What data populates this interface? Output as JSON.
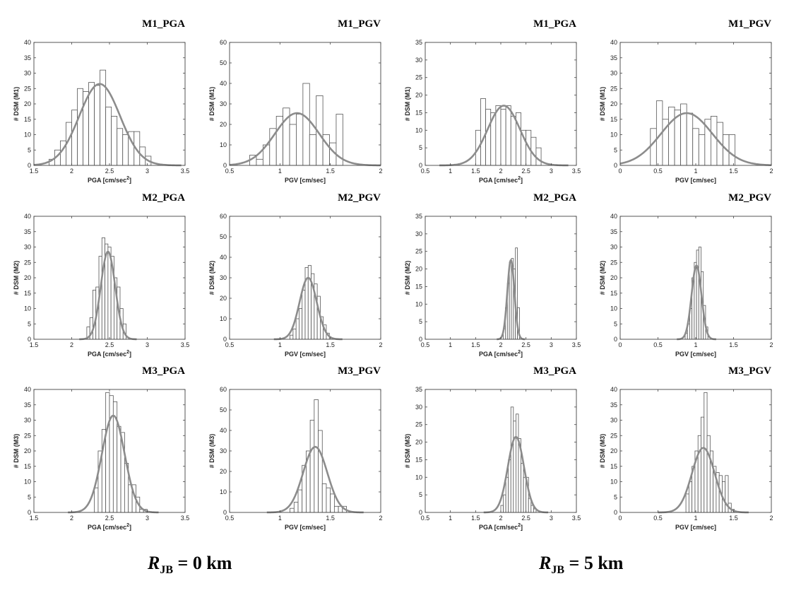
{
  "captions": {
    "left": {
      "symbol": "R",
      "subscript": "JB",
      "rest": " = 0 km"
    },
    "right": {
      "symbol": "R",
      "subscript": "JB",
      "rest": " = 5 km"
    }
  },
  "chart_data": [
    {
      "type": "bar",
      "title": "M1_PGA",
      "xlabel": "PGA [cm/sec2]",
      "ylabel": "# DSM (M1)",
      "xlim": [
        1.5,
        3.5
      ],
      "ylim": [
        0,
        40
      ],
      "xticks": [
        "1.5",
        "2",
        "2.5",
        "3",
        "3.5"
      ],
      "yticks": [
        "0",
        "5",
        "10",
        "15",
        "20",
        "25",
        "30",
        "35",
        "40"
      ],
      "bins": [
        1.7,
        1.775,
        1.85,
        1.925,
        2.0,
        2.075,
        2.15,
        2.225,
        2.3,
        2.375,
        2.45,
        2.525,
        2.6,
        2.675,
        2.75,
        2.825,
        2.9,
        2.975,
        3.05
      ],
      "counts": [
        2,
        5,
        8,
        14,
        18,
        25,
        24,
        27,
        26,
        31,
        19,
        16,
        12,
        10,
        11,
        11,
        6,
        3
      ],
      "fit": {
        "mean": 2.37,
        "sd": 0.27,
        "peak": 26.5
      }
    },
    {
      "type": "bar",
      "title": "M1_PGV",
      "xlabel": "PGV [cm/sec]",
      "ylabel": "# DSM (M1)",
      "xlim": [
        0.5,
        2
      ],
      "ylim": [
        0,
        60
      ],
      "xticks": [
        "0.5",
        "1",
        "1.5",
        "2"
      ],
      "yticks": [
        "0",
        "10",
        "20",
        "30",
        "40",
        "50",
        "60"
      ],
      "bins": [
        0.7,
        0.766,
        0.832,
        0.898,
        0.964,
        1.03,
        1.096,
        1.162,
        1.228,
        1.294,
        1.36,
        1.426,
        1.492,
        1.558,
        1.624
      ],
      "counts": [
        5,
        3,
        10,
        18,
        24,
        28,
        20,
        25,
        40,
        15,
        34,
        15,
        11,
        25,
        16
      ],
      "fit": {
        "mean": 1.17,
        "sd": 0.22,
        "peak": 25.5
      }
    },
    {
      "type": "bar",
      "title": "M1_PGA",
      "xlabel": "PGA [cm/sec2]",
      "ylabel": "# DSM (M1)",
      "xlim": [
        0.5,
        3.5
      ],
      "ylim": [
        0,
        35
      ],
      "xticks": [
        "0.5",
        "1",
        "1.5",
        "2",
        "2.5",
        "3",
        "3.5"
      ],
      "yticks": [
        "0",
        "5",
        "10",
        "15",
        "20",
        "25",
        "30",
        "35"
      ],
      "bins": [
        1.5,
        1.6,
        1.7,
        1.8,
        1.9,
        2.0,
        2.1,
        2.2,
        2.3,
        2.4,
        2.5,
        2.6,
        2.7,
        2.8
      ],
      "counts": [
        10,
        19,
        16,
        15,
        17,
        16,
        17,
        14,
        15,
        10,
        10,
        8,
        5
      ],
      "fit": {
        "mean": 2.06,
        "sd": 0.32,
        "peak": 17
      }
    },
    {
      "type": "bar",
      "title": "M1_PGV",
      "xlabel": "PGV [cm/sec]",
      "ylabel": "# DSM (M1)",
      "xlim": [
        0,
        2
      ],
      "ylim": [
        0,
        40
      ],
      "xticks": [
        "0",
        "0.5",
        "1",
        "1.5",
        "2"
      ],
      "yticks": [
        "0",
        "5",
        "10",
        "15",
        "20",
        "25",
        "30",
        "35",
        "40"
      ],
      "bins": [
        0.4,
        0.48,
        0.56,
        0.64,
        0.72,
        0.8,
        0.88,
        0.96,
        1.04,
        1.12,
        1.2,
        1.28,
        1.36,
        1.44,
        1.52
      ],
      "counts": [
        12,
        21,
        15,
        19,
        18,
        20,
        17,
        12,
        10,
        15,
        16,
        14,
        10,
        10
      ],
      "fit": {
        "mean": 0.88,
        "sd": 0.34,
        "peak": 17
      }
    },
    {
      "type": "bar",
      "title": "M2_PGA",
      "xlabel": "PGA [cm/sec2]",
      "ylabel": "# DSM (M2)",
      "xlim": [
        1.5,
        3.5
      ],
      "ylim": [
        0,
        40
      ],
      "xticks": [
        "1.5",
        "2",
        "2.5",
        "3",
        "3.5"
      ],
      "yticks": [
        "0",
        "5",
        "10",
        "15",
        "20",
        "25",
        "30",
        "35",
        "40"
      ],
      "bins": [
        2.2,
        2.24,
        2.28,
        2.32,
        2.36,
        2.4,
        2.44,
        2.48,
        2.52,
        2.56,
        2.6,
        2.64,
        2.68,
        2.72
      ],
      "counts": [
        4,
        7,
        16,
        17,
        27,
        33,
        31,
        30,
        27,
        20,
        17,
        10,
        5
      ],
      "fit": {
        "mean": 2.48,
        "sd": 0.095,
        "peak": 28.5
      }
    },
    {
      "type": "bar",
      "title": "M2_PGV",
      "xlabel": "PGV [cm/sec]",
      "ylabel": "# DSM (M2)",
      "xlim": [
        0.5,
        2
      ],
      "ylim": [
        0,
        60
      ],
      "xticks": [
        "0.5",
        "1",
        "1.5",
        "2"
      ],
      "yticks": [
        "0",
        "10",
        "20",
        "30",
        "40",
        "50",
        "60"
      ],
      "bins": [
        1.1,
        1.13,
        1.16,
        1.19,
        1.22,
        1.25,
        1.28,
        1.31,
        1.34,
        1.37,
        1.4,
        1.43,
        1.46,
        1.49
      ],
      "counts": [
        2,
        5,
        10,
        15,
        24,
        35,
        36,
        32,
        27,
        21,
        11,
        7,
        3
      ],
      "fit": {
        "mean": 1.28,
        "sd": 0.085,
        "peak": 30
      }
    },
    {
      "type": "bar",
      "title": "M2_PGA",
      "xlabel": "PGA [cm/sec2]",
      "ylabel": "# DSM (M2)",
      "xlim": [
        0.5,
        3.5
      ],
      "ylim": [
        0,
        35
      ],
      "xticks": [
        "0.5",
        "1",
        "1.5",
        "2",
        "2.5",
        "3",
        "3.5"
      ],
      "yticks": [
        "0",
        "5",
        "10",
        "15",
        "20",
        "25",
        "30",
        "35"
      ],
      "bins": [
        2.05,
        2.09,
        2.13,
        2.17,
        2.21,
        2.25,
        2.29,
        2.33,
        2.37
      ],
      "counts": [
        3,
        9,
        16,
        22,
        23,
        20,
        26,
        9
      ],
      "fit": {
        "mean": 2.2,
        "sd": 0.07,
        "peak": 22.5
      }
    },
    {
      "type": "bar",
      "title": "M2_PGV",
      "xlabel": "PGV [cm/sec]",
      "ylabel": "# DSM (M2)",
      "xlim": [
        0,
        2
      ],
      "ylim": [
        0,
        40
      ],
      "xticks": [
        "0",
        "0.5",
        "1",
        "1.5",
        "2"
      ],
      "yticks": [
        "0",
        "5",
        "10",
        "15",
        "20",
        "25",
        "30",
        "35",
        "40"
      ],
      "bins": [
        0.86,
        0.89,
        0.92,
        0.95,
        0.98,
        1.01,
        1.04,
        1.07,
        1.1,
        1.13,
        1.16
      ],
      "counts": [
        2,
        5,
        10,
        20,
        25,
        29,
        30,
        22,
        11,
        4
      ],
      "fit": {
        "mean": 1.01,
        "sd": 0.065,
        "peak": 24
      }
    },
    {
      "type": "bar",
      "title": "M3_PGA",
      "xlabel": "PGA [cm/sec2]",
      "ylabel": "# DSM (M3)",
      "xlim": [
        1.5,
        3.5
      ],
      "ylim": [
        0,
        40
      ],
      "xticks": [
        "1.5",
        "2",
        "2.5",
        "3",
        "3.5"
      ],
      "yticks": [
        "0",
        "5",
        "10",
        "15",
        "20",
        "25",
        "30",
        "35",
        "40"
      ],
      "bins": [
        2.3,
        2.35,
        2.4,
        2.45,
        2.5,
        2.55,
        2.6,
        2.65,
        2.7,
        2.75,
        2.8,
        2.85,
        2.9,
        2.95,
        3.0
      ],
      "counts": [
        8,
        20,
        27,
        39,
        38,
        36,
        28,
        26,
        16,
        9,
        9,
        5,
        1,
        1
      ],
      "fit": {
        "mean": 2.55,
        "sd": 0.15,
        "peak": 31.5
      }
    },
    {
      "type": "bar",
      "title": "M3_PGV",
      "xlabel": "PGV [cm/sec]",
      "ylabel": "# DSM (M3)",
      "xlim": [
        0.5,
        2
      ],
      "ylim": [
        0,
        60
      ],
      "xticks": [
        "0.5",
        "1",
        "1.5",
        "2"
      ],
      "yticks": [
        "0",
        "10",
        "20",
        "30",
        "40",
        "50",
        "60"
      ],
      "bins": [
        1.1,
        1.14,
        1.18,
        1.22,
        1.26,
        1.3,
        1.34,
        1.38,
        1.42,
        1.46,
        1.5,
        1.54,
        1.58,
        1.62,
        1.66
      ],
      "counts": [
        2,
        5,
        11,
        23,
        30,
        45,
        55,
        40,
        14,
        12,
        9,
        3,
        3,
        3
      ],
      "fit": {
        "mean": 1.35,
        "sd": 0.12,
        "peak": 32
      }
    },
    {
      "type": "bar",
      "title": "M3_PGA",
      "xlabel": "PGA [cm/sec2]",
      "ylabel": "# DSM (M3)",
      "xlim": [
        0.5,
        3.5
      ],
      "ylim": [
        0,
        35
      ],
      "xticks": [
        "0.5",
        "1",
        "1.5",
        "2",
        "2.5",
        "3",
        "3.5"
      ],
      "yticks": [
        "0",
        "5",
        "10",
        "15",
        "20",
        "25",
        "30",
        "35"
      ],
      "bins": [
        2.0,
        2.05,
        2.1,
        2.15,
        2.2,
        2.25,
        2.3,
        2.35,
        2.4,
        2.45,
        2.5,
        2.55,
        2.6,
        2.65,
        2.7
      ],
      "counts": [
        2,
        5,
        10,
        15,
        30,
        26,
        28,
        21,
        14,
        10,
        10,
        4,
        2,
        1
      ],
      "fit": {
        "mean": 2.3,
        "sd": 0.16,
        "peak": 21.5
      }
    },
    {
      "type": "bar",
      "title": "M3_PGV",
      "xlabel": "PGV [cm/sec]",
      "ylabel": "# DSM (M3)",
      "xlim": [
        0,
        2
      ],
      "ylim": [
        0,
        40
      ],
      "xticks": [
        "0",
        "0.5",
        "1",
        "1.5",
        "2"
      ],
      "yticks": [
        "0",
        "5",
        "10",
        "15",
        "20",
        "25",
        "30",
        "35",
        "40"
      ],
      "bins": [
        0.87,
        0.91,
        0.95,
        0.99,
        1.03,
        1.07,
        1.11,
        1.15,
        1.19,
        1.23,
        1.27,
        1.31,
        1.35,
        1.39,
        1.43,
        1.47,
        1.51
      ],
      "counts": [
        6,
        10,
        15,
        20,
        25,
        31,
        39,
        25,
        20,
        15,
        13,
        12,
        10,
        12,
        3,
        1
      ],
      "fit": {
        "mean": 1.1,
        "sd": 0.15,
        "peak": 21
      }
    }
  ]
}
